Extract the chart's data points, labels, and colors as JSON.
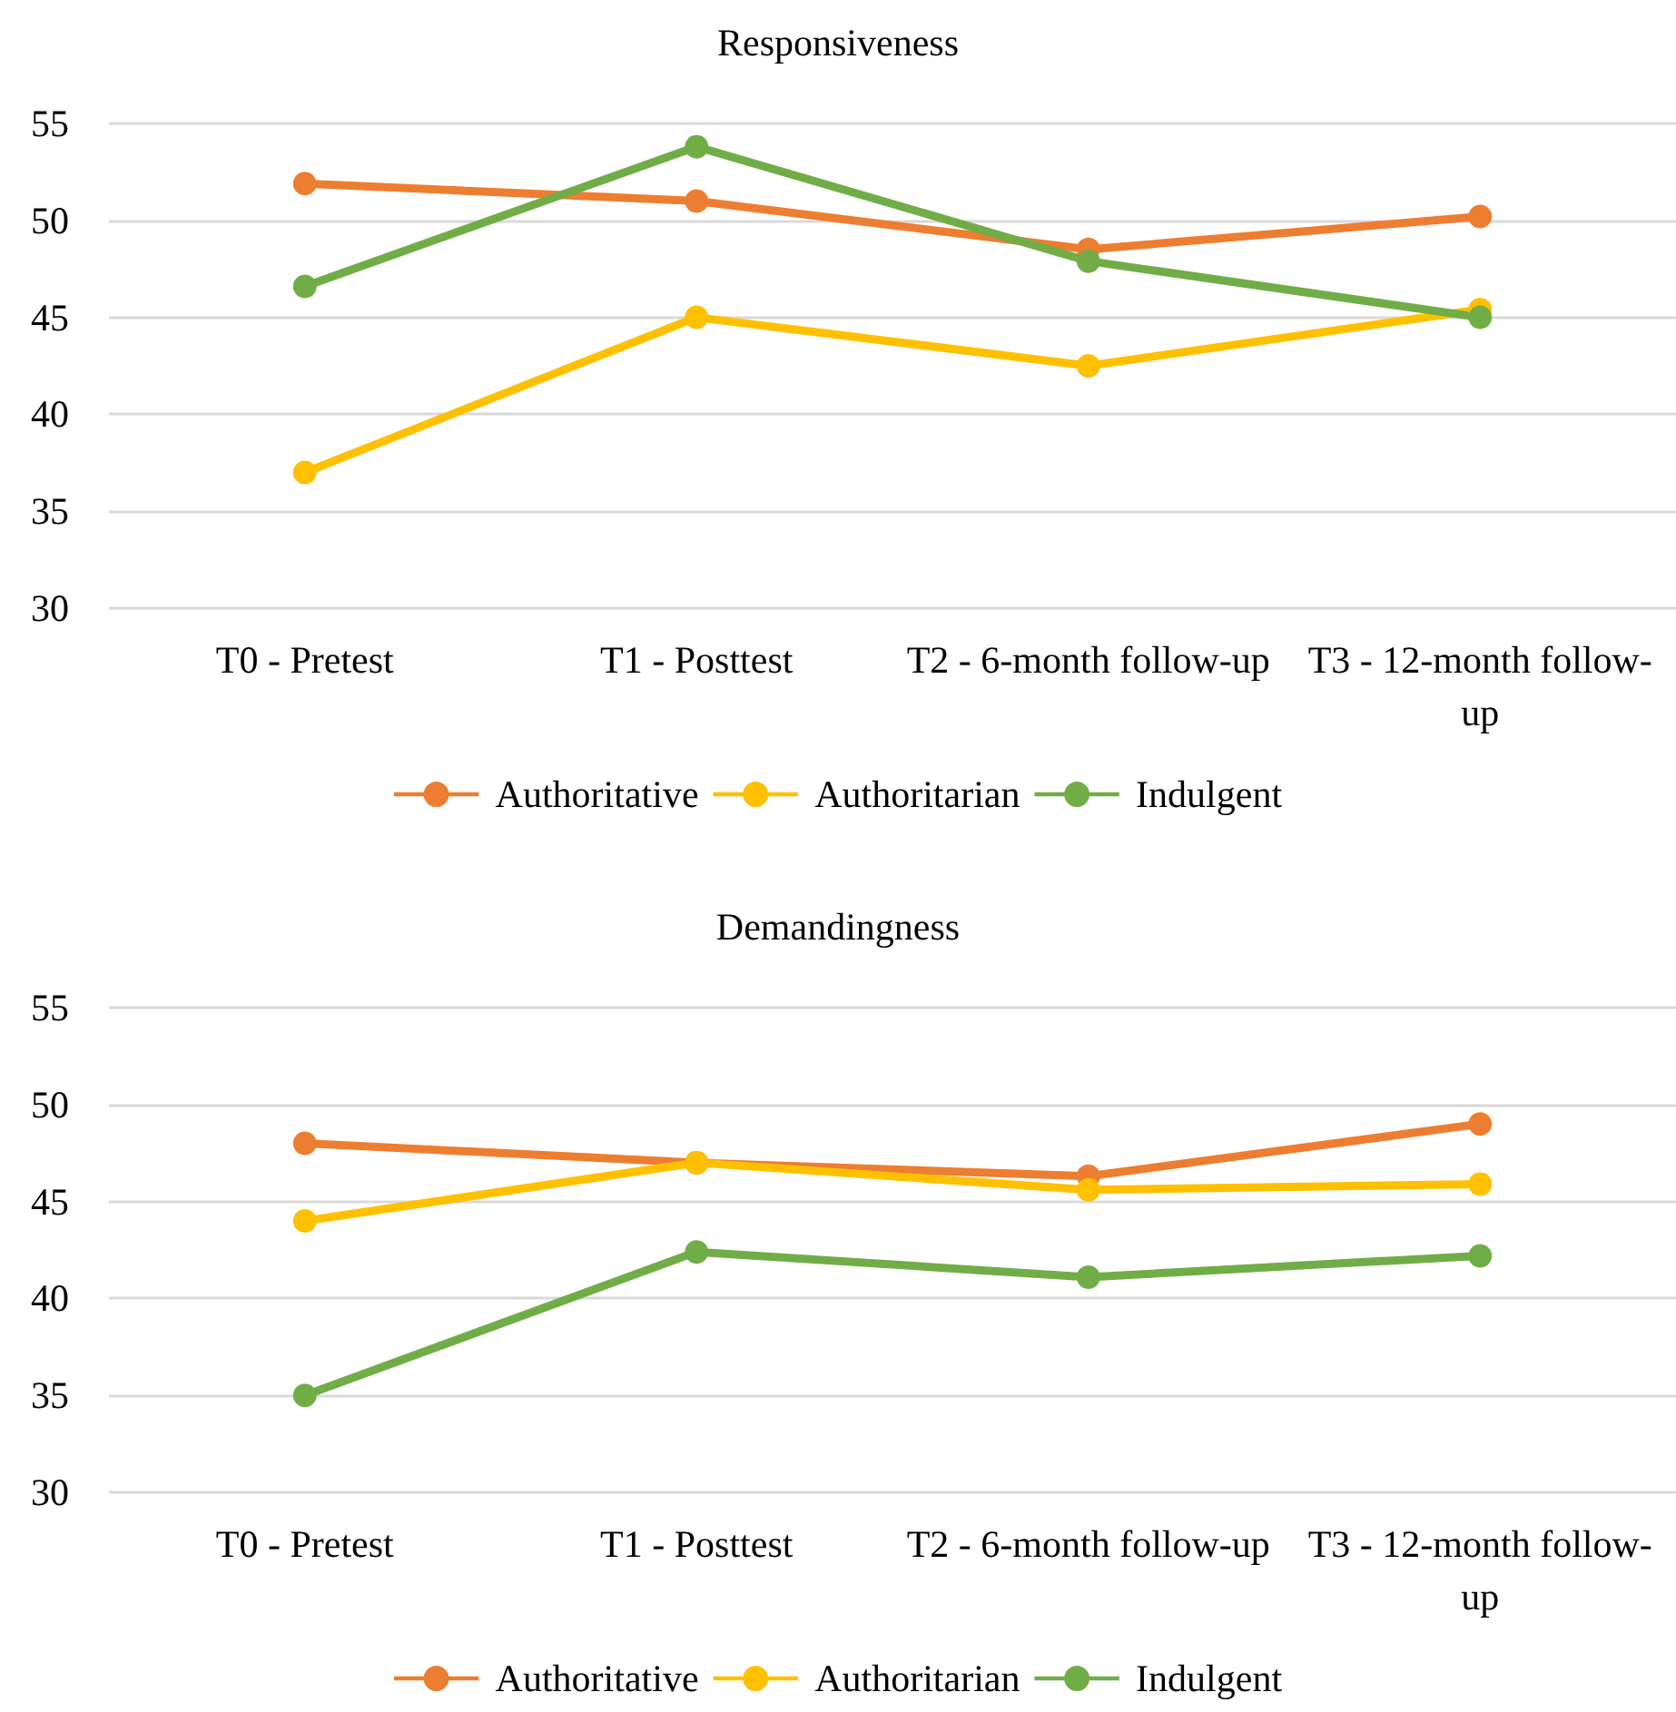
{
  "chart_data": [
    {
      "type": "line",
      "title": "Responsiveness",
      "categories": [
        "T0 - Pretest",
        "T1 - Posttest",
        "T2 - 6-month follow-up",
        "T3 - 12-month follow-up"
      ],
      "series": [
        {
          "name": "Authoritative",
          "color": "#ed7d31",
          "values": [
            51.9,
            51.0,
            48.5,
            50.2
          ]
        },
        {
          "name": "Authoritarian",
          "color": "#ffc000",
          "values": [
            37.0,
            45.0,
            42.5,
            45.4
          ]
        },
        {
          "name": "Indulgent",
          "color": "#70ad47",
          "values": [
            46.6,
            53.8,
            47.9,
            45.0
          ]
        }
      ],
      "ylim": [
        30,
        55
      ],
      "yticks": [
        30,
        35,
        40,
        45,
        50,
        55
      ],
      "grid": "y",
      "legend": "bottom",
      "marker": "circle",
      "line_style": "solid"
    },
    {
      "type": "line",
      "title": "Demandingness",
      "categories": [
        "T0 - Pretest",
        "T1 - Posttest",
        "T2 - 6-month follow-up",
        "T3 - 12-month follow-up"
      ],
      "series": [
        {
          "name": "Authoritative",
          "color": "#ed7d31",
          "values": [
            48.0,
            47.0,
            46.3,
            49.0
          ]
        },
        {
          "name": "Authoritarian",
          "color": "#ffc000",
          "values": [
            44.0,
            47.0,
            45.6,
            45.9
          ]
        },
        {
          "name": "Indulgent",
          "color": "#70ad47",
          "values": [
            35.0,
            42.4,
            41.1,
            42.2
          ]
        }
      ],
      "ylim": [
        30,
        55
      ],
      "yticks": [
        30,
        35,
        40,
        45,
        50,
        55
      ],
      "grid": "y",
      "legend": "bottom",
      "marker": "circle",
      "line_style": "solid"
    }
  ]
}
